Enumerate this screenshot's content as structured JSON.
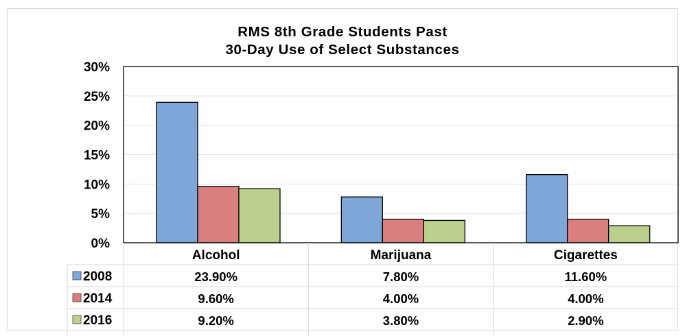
{
  "chart_data": {
    "type": "bar",
    "title_lines": [
      "RMS 8th Grade Students Past",
      "30-Day Use of Select Substances"
    ],
    "categories": [
      "Alcohol",
      "Marijuana",
      "Cigarettes"
    ],
    "series": [
      {
        "name": "2008",
        "values": [
          23.9,
          7.8,
          11.6
        ],
        "labels": [
          "23.90%",
          "7.80%",
          "11.60%"
        ],
        "color": "#7ea6d6"
      },
      {
        "name": "2014",
        "values": [
          9.6,
          4.0,
          4.0
        ],
        "labels": [
          "9.60%",
          "4.00%",
          "4.00%"
        ],
        "color": "#d97f80"
      },
      {
        "name": "2016",
        "values": [
          9.2,
          3.8,
          2.9
        ],
        "labels": [
          "9.20%",
          "3.80%",
          "2.90%"
        ],
        "color": "#bcd08e"
      }
    ],
    "yticks": [
      "0%",
      "5%",
      "10%",
      "15%",
      "20%",
      "25%",
      "30%"
    ],
    "ylim": [
      0,
      30
    ],
    "grid": true,
    "legend": "data-table"
  }
}
